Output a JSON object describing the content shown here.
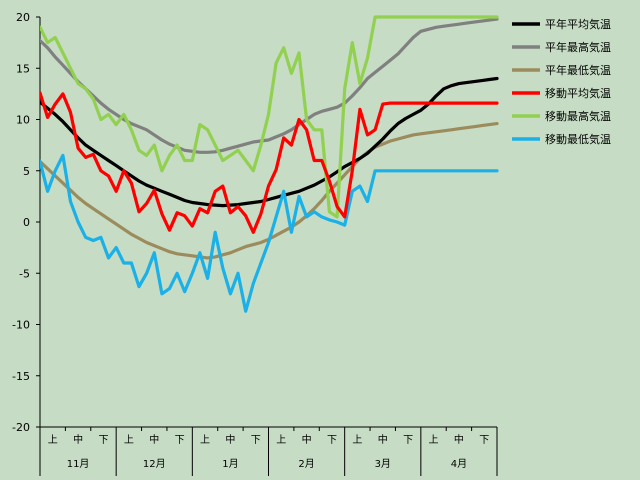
{
  "chart_data": {
    "type": "line",
    "title": "",
    "xlabel": "",
    "ylabel": "",
    "ylim": [
      -20,
      20
    ],
    "yticks": [
      20,
      15,
      10,
      5,
      0,
      -5,
      -10,
      -15,
      -20
    ],
    "months": [
      "11月",
      "12月",
      "1月",
      "2月",
      "3月",
      "4月"
    ],
    "periods": [
      "上",
      "中",
      "下"
    ],
    "colors": {
      "background": "#c6dcc4",
      "axis": "#000000",
      "avg_normal": "#000000",
      "max_normal": "#808080",
      "min_normal": "#9c8b5c",
      "avg_moving": "#ff0000",
      "max_moving": "#92d050",
      "min_moving": "#1ab0e8"
    },
    "legend_position": "top-right",
    "series": [
      {
        "key": "avg_normal",
        "name": "平年平均気温",
        "x": [
          0,
          3,
          6,
          9,
          12,
          15,
          18,
          21,
          24,
          27,
          30,
          33,
          36,
          39,
          42,
          45,
          48,
          51,
          54,
          57,
          60,
          63,
          66,
          69,
          72,
          75,
          78,
          81,
          84,
          87,
          90,
          93,
          96,
          99,
          102,
          105,
          108,
          111,
          114,
          117,
          120,
          123,
          126,
          129,
          132,
          135,
          138,
          141,
          144,
          147,
          150,
          153,
          156,
          159,
          162,
          165,
          168,
          171,
          174,
          177,
          180
        ],
        "values": [
          11.7,
          11.1,
          10.5,
          9.8,
          9.0,
          8.2,
          7.5,
          7.0,
          6.5,
          6.0,
          5.5,
          5.0,
          4.5,
          4.0,
          3.6,
          3.3,
          3.0,
          2.7,
          2.4,
          2.1,
          1.9,
          1.8,
          1.7,
          1.65,
          1.6,
          1.65,
          1.7,
          1.8,
          1.9,
          2.0,
          2.2,
          2.4,
          2.6,
          2.8,
          3.0,
          3.3,
          3.6,
          4.0,
          4.4,
          4.9,
          5.4,
          5.8,
          6.2,
          6.7,
          7.4,
          8.1,
          8.9,
          9.6,
          10.1,
          10.5,
          10.9,
          11.5,
          12.3,
          13.0,
          13.3,
          13.5,
          13.6,
          13.7,
          13.8,
          13.9,
          14.0
        ]
      },
      {
        "key": "max_normal",
        "name": "平年最高気温",
        "x": [
          0,
          3,
          6,
          9,
          12,
          15,
          18,
          21,
          24,
          27,
          30,
          33,
          36,
          39,
          42,
          45,
          48,
          51,
          54,
          57,
          60,
          63,
          66,
          69,
          72,
          75,
          78,
          81,
          84,
          87,
          90,
          93,
          96,
          99,
          102,
          105,
          108,
          111,
          114,
          117,
          120,
          123,
          126,
          129,
          132,
          135,
          138,
          141,
          144,
          147,
          150,
          153,
          156,
          159,
          162,
          165,
          168,
          171,
          174,
          177,
          180
        ],
        "values": [
          17.7,
          17.0,
          16.1,
          15.3,
          14.5,
          13.7,
          13.0,
          12.3,
          11.6,
          11.0,
          10.5,
          10.0,
          9.6,
          9.3,
          9.0,
          8.5,
          8.0,
          7.6,
          7.3,
          7.0,
          6.9,
          6.8,
          6.8,
          6.85,
          7.0,
          7.2,
          7.4,
          7.6,
          7.8,
          7.9,
          8.0,
          8.3,
          8.6,
          9.0,
          9.5,
          10.0,
          10.5,
          10.8,
          11.0,
          11.2,
          11.6,
          12.3,
          13.1,
          14.0,
          14.6,
          15.2,
          15.8,
          16.4,
          17.2,
          18.0,
          18.6,
          18.8,
          19.0,
          19.1,
          19.2,
          19.3,
          19.4,
          19.5,
          19.6,
          19.7,
          19.8
        ]
      },
      {
        "key": "min_normal",
        "name": "平年最低気温",
        "x": [
          0,
          3,
          6,
          9,
          12,
          15,
          18,
          21,
          24,
          27,
          30,
          33,
          36,
          39,
          42,
          45,
          48,
          51,
          54,
          57,
          60,
          63,
          66,
          69,
          72,
          75,
          78,
          81,
          84,
          87,
          90,
          93,
          96,
          99,
          102,
          105,
          108,
          111,
          114,
          117,
          120,
          123,
          126,
          129,
          132,
          135,
          138,
          141,
          144,
          147,
          150,
          153,
          156,
          159,
          162,
          165,
          168,
          171,
          174,
          177,
          180
        ],
        "values": [
          5.9,
          5.2,
          4.5,
          3.8,
          3.1,
          2.4,
          1.8,
          1.3,
          0.8,
          0.3,
          -0.2,
          -0.7,
          -1.2,
          -1.6,
          -2.0,
          -2.3,
          -2.6,
          -2.9,
          -3.1,
          -3.2,
          -3.3,
          -3.4,
          -3.5,
          -3.4,
          -3.2,
          -3.0,
          -2.7,
          -2.4,
          -2.2,
          -2.0,
          -1.7,
          -1.3,
          -0.9,
          -0.5,
          0.0,
          0.6,
          1.3,
          2.1,
          3.0,
          3.8,
          4.6,
          5.4,
          6.2,
          6.8,
          7.3,
          7.6,
          7.9,
          8.1,
          8.3,
          8.5,
          8.6,
          8.7,
          8.8,
          8.9,
          9.0,
          9.1,
          9.2,
          9.3,
          9.4,
          9.5,
          9.6
        ]
      },
      {
        "key": "avg_moving",
        "name": "移動平均気温",
        "x": [
          0,
          3,
          6,
          9,
          12,
          15,
          18,
          21,
          24,
          27,
          30,
          33,
          36,
          39,
          42,
          45,
          48,
          51,
          54,
          57,
          60,
          63,
          66,
          69,
          72,
          75,
          78,
          81,
          84,
          87,
          90,
          93,
          96,
          99,
          102,
          105,
          108,
          111,
          114,
          117,
          120,
          123,
          126,
          129,
          132,
          135,
          138,
          141,
          144,
          147,
          150,
          153,
          156,
          159,
          162,
          165,
          168,
          171,
          174,
          177,
          180
        ],
        "values": [
          12.6,
          10.2,
          11.5,
          12.5,
          10.7,
          7.2,
          6.3,
          6.6,
          5.0,
          4.5,
          3.0,
          5.0,
          3.8,
          1.0,
          1.8,
          3.1,
          0.8,
          -0.8,
          0.9,
          0.6,
          -0.4,
          1.3,
          0.9,
          3.0,
          3.5,
          0.9,
          1.5,
          0.6,
          -1.0,
          0.8,
          3.5,
          5.1,
          8.2,
          7.5,
          10.0,
          9.0,
          6.0,
          6.0,
          4.0,
          1.5,
          0.5,
          5.0,
          11.0,
          8.5,
          9.0,
          11.5,
          11.6,
          11.6,
          11.6,
          11.6,
          11.6,
          11.6,
          11.6,
          11.6,
          11.6,
          11.6,
          11.6,
          11.6,
          11.6,
          11.6,
          11.6
        ]
      },
      {
        "key": "max_moving",
        "name": "移動最高気温",
        "x": [
          0,
          3,
          6,
          9,
          12,
          15,
          18,
          21,
          24,
          27,
          30,
          33,
          36,
          39,
          42,
          45,
          48,
          51,
          54,
          57,
          60,
          63,
          66,
          69,
          72,
          75,
          78,
          81,
          84,
          87,
          90,
          93,
          96,
          99,
          102,
          105,
          108,
          111,
          114,
          117,
          120,
          123,
          126,
          129,
          132,
          135,
          138,
          141,
          144,
          147,
          150,
          153,
          156,
          159,
          162,
          165,
          168,
          171,
          174,
          177,
          180
        ],
        "values": [
          19.0,
          17.5,
          18.0,
          16.5,
          15.0,
          13.5,
          13.0,
          12.0,
          10.0,
          10.5,
          9.5,
          10.5,
          9.0,
          7.0,
          6.5,
          7.5,
          5.0,
          6.5,
          7.5,
          6.0,
          6.0,
          9.5,
          9.0,
          7.5,
          6.0,
          6.5,
          7.0,
          6.0,
          5.0,
          7.5,
          10.5,
          15.5,
          17.0,
          14.5,
          16.5,
          10.0,
          9.0,
          9.0,
          1.0,
          0.5,
          13.0,
          17.5,
          13.5,
          16.0,
          20.0,
          20.0,
          20.0,
          20.0,
          20.0,
          20.0,
          20.0,
          20.0,
          20.0,
          20.0,
          20.0,
          20.0,
          20.0,
          20.0,
          20.0,
          20.0,
          20.0
        ]
      },
      {
        "key": "min_moving",
        "name": "移動最低気温",
        "x": [
          0,
          3,
          6,
          9,
          12,
          15,
          18,
          21,
          24,
          27,
          30,
          33,
          36,
          39,
          42,
          45,
          48,
          51,
          54,
          57,
          60,
          63,
          66,
          69,
          72,
          75,
          78,
          81,
          84,
          87,
          90,
          93,
          96,
          99,
          102,
          105,
          108,
          111,
          114,
          117,
          120,
          123,
          126,
          129,
          132,
          135,
          138,
          141,
          144,
          147,
          150,
          153,
          156,
          159,
          162,
          165,
          168,
          171,
          174,
          177,
          180
        ],
        "values": [
          5.9,
          3.0,
          5.0,
          6.5,
          2.0,
          0.0,
          -1.5,
          -1.8,
          -1.5,
          -3.5,
          -2.5,
          -4.0,
          -4.0,
          -6.3,
          -5.0,
          -3.0,
          -7.0,
          -6.5,
          -5.0,
          -6.8,
          -5.0,
          -3.0,
          -5.5,
          -1.0,
          -4.5,
          -7.0,
          -5.0,
          -8.7,
          -6.0,
          -4.0,
          -2.0,
          0.5,
          3.0,
          -1.0,
          2.5,
          0.5,
          1.0,
          0.5,
          0.2,
          0.0,
          -0.3,
          3.0,
          3.5,
          2.0,
          5.0,
          5.0,
          5.0,
          5.0,
          5.0,
          5.0,
          5.0,
          5.0,
          5.0,
          5.0,
          5.0,
          5.0,
          5.0,
          5.0,
          5.0,
          5.0,
          5.0
        ]
      }
    ]
  }
}
